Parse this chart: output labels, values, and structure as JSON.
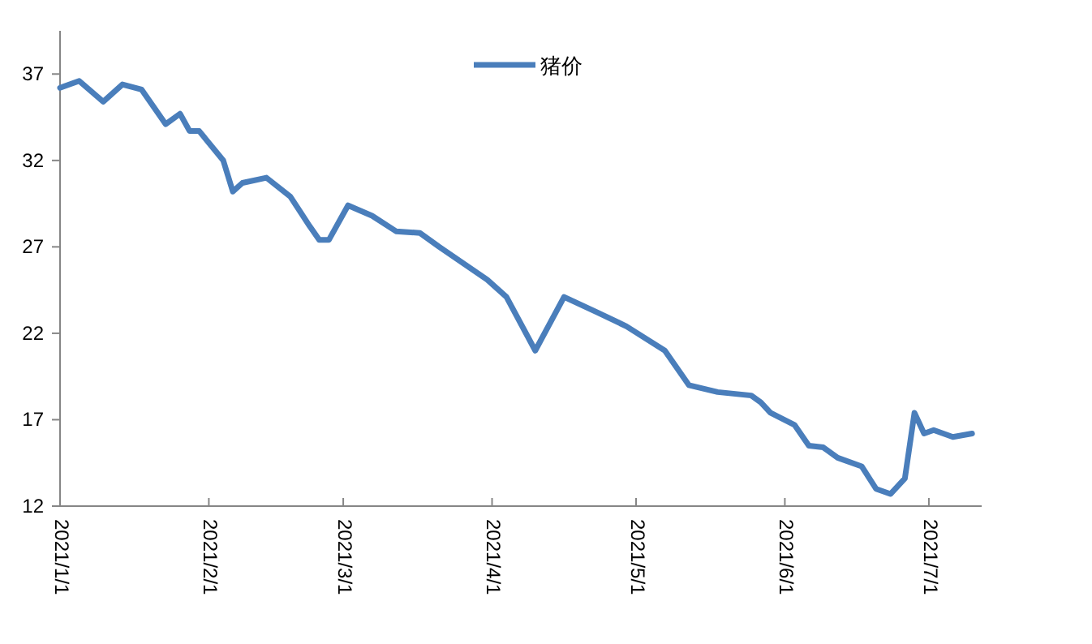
{
  "chart_data": {
    "type": "line",
    "x": [
      "2021-01-01",
      "2021-01-05",
      "2021-01-10",
      "2021-01-14",
      "2021-01-18",
      "2021-01-23",
      "2021-01-26",
      "2021-01-28",
      "2021-01-30",
      "2021-02-04",
      "2021-02-06",
      "2021-02-08",
      "2021-02-13",
      "2021-02-18",
      "2021-02-22",
      "2021-02-24",
      "2021-02-26",
      "2021-03-02",
      "2021-03-07",
      "2021-03-12",
      "2021-03-17",
      "2021-03-21",
      "2021-03-31",
      "2021-04-04",
      "2021-04-10",
      "2021-04-16",
      "2021-04-23",
      "2021-04-29",
      "2021-05-07",
      "2021-05-12",
      "2021-05-18",
      "2021-05-25",
      "2021-05-27",
      "2021-05-29",
      "2021-06-03",
      "2021-06-06",
      "2021-06-09",
      "2021-06-12",
      "2021-06-17",
      "2021-06-20",
      "2021-06-23",
      "2021-06-26",
      "2021-06-28",
      "2021-06-30",
      "2021-07-02",
      "2021-07-06",
      "2021-07-10"
    ],
    "series": [
      {
        "name": "猪价",
        "color": "#4a7ebb",
        "values": [
          36.2,
          36.6,
          35.4,
          36.4,
          36.1,
          34.1,
          34.7,
          33.7,
          33.7,
          32.0,
          30.2,
          30.7,
          31.0,
          29.9,
          28.2,
          27.4,
          27.4,
          29.4,
          28.8,
          27.9,
          27.8,
          27.0,
          25.1,
          24.1,
          21.0,
          24.1,
          23.2,
          22.4,
          21.0,
          19.0,
          18.6,
          18.4,
          18.0,
          17.4,
          16.7,
          15.5,
          15.4,
          14.8,
          14.3,
          13.0,
          12.7,
          13.6,
          17.4,
          16.2,
          16.4,
          16.0,
          16.2
        ]
      }
    ],
    "xlim": [
      "2021-01-01",
      "2021-07-12"
    ],
    "xticks": [
      {
        "value": "2021-01-01",
        "label": "2021/1/1"
      },
      {
        "value": "2021-02-01",
        "label": "2021/2/1"
      },
      {
        "value": "2021-03-01",
        "label": "2021/3/1"
      },
      {
        "value": "2021-04-01",
        "label": "2021/4/1"
      },
      {
        "value": "2021-05-01",
        "label": "2021/5/1"
      },
      {
        "value": "2021-06-01",
        "label": "2021/6/1"
      },
      {
        "value": "2021-07-01",
        "label": "2021/7/1"
      }
    ],
    "ylim": [
      12,
      39.5
    ],
    "yticks": [
      12,
      17,
      22,
      27,
      32,
      37
    ],
    "legend": "top",
    "grid": false,
    "marker": "none"
  }
}
